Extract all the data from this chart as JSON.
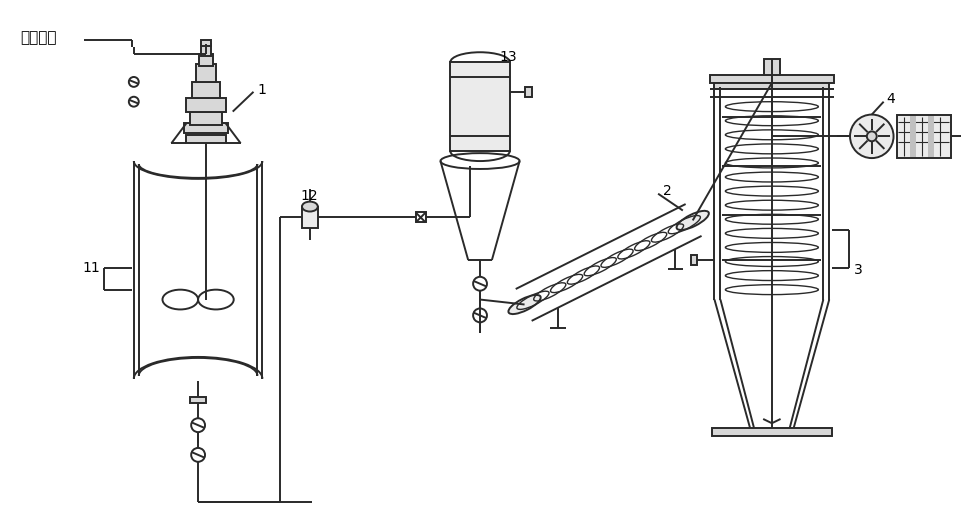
{
  "bg_color": "#ffffff",
  "line_color": "#2a2a2a",
  "label_color": "#000000",
  "gray_fill": "#d8d8d8",
  "light_fill": "#ebebeb",
  "labels": {
    "city_sludge": "城镇污泥",
    "n1": "1",
    "n2": "2",
    "n3": "3",
    "n4": "4",
    "n11": "11",
    "n12": "12",
    "n13": "13"
  },
  "figsize": [
    9.67,
    5.17
  ],
  "dpi": 100
}
